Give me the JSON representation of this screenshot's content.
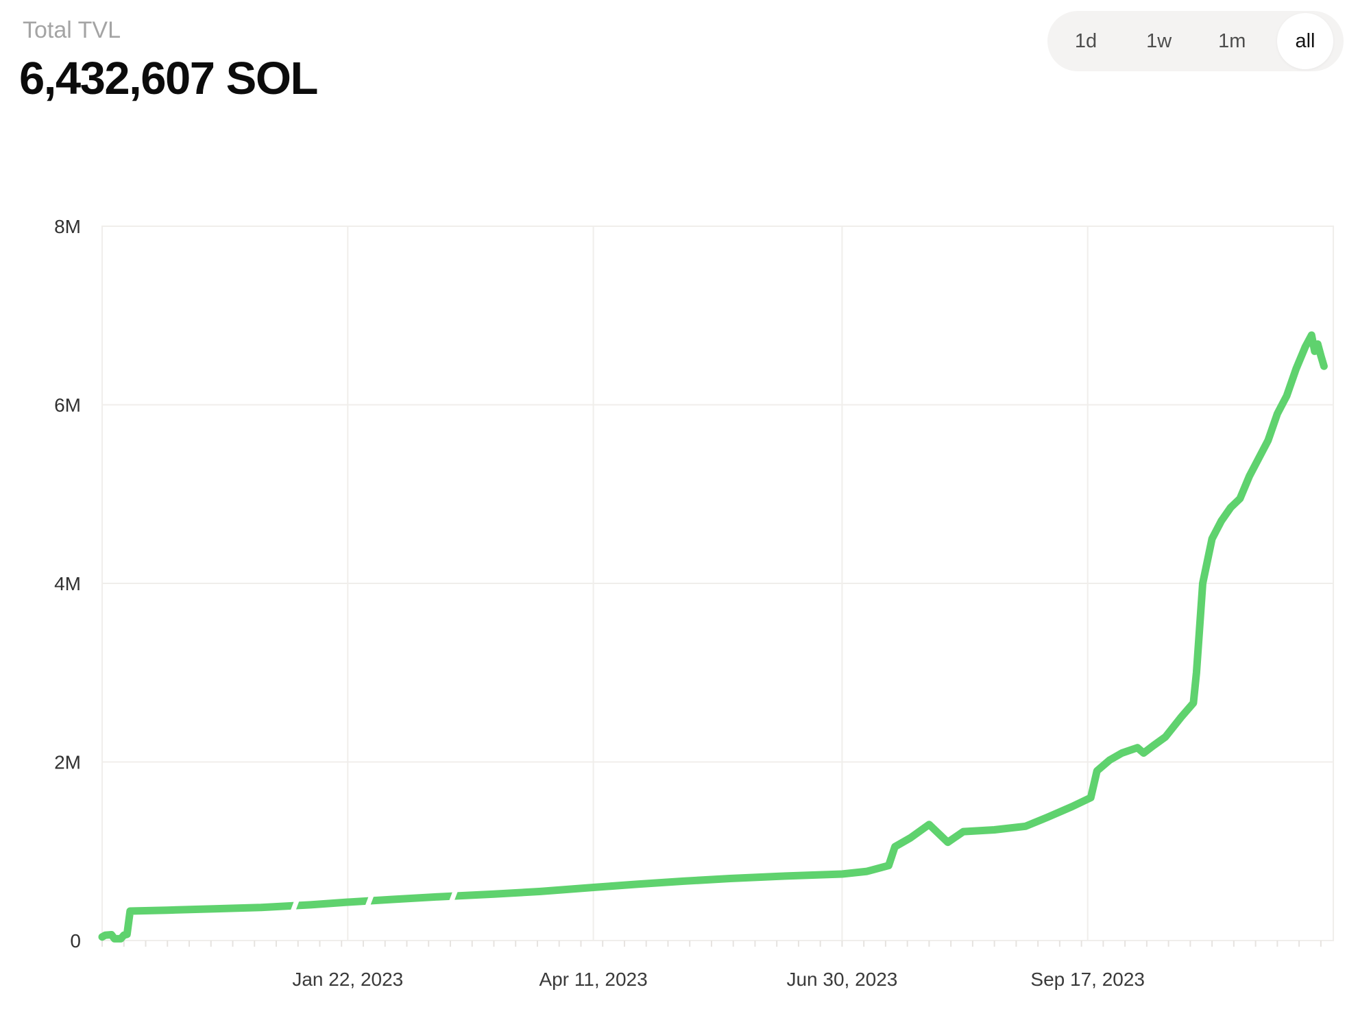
{
  "header": {
    "label": "Total TVL",
    "value": "6,432,607 SOL"
  },
  "range_selector": {
    "options": [
      {
        "label": "1d",
        "active": false
      },
      {
        "label": "1w",
        "active": false
      },
      {
        "label": "1m",
        "active": false
      },
      {
        "label": "all",
        "active": true
      }
    ]
  },
  "chart_data": {
    "type": "line",
    "title": "Total TVL",
    "unit": "SOL",
    "line_color": "#5fd26e",
    "grid_color": "#f0eeeb",
    "minor_tick_color": "#e6e3e0",
    "axis_label_color": "#3a3a3a",
    "legend": "none",
    "grid": true,
    "ylim": [
      0,
      8000000
    ],
    "x_domain": [
      "2022-11-04",
      "2023-12-05"
    ],
    "y_ticks": [
      {
        "value": 0,
        "label": "0"
      },
      {
        "value": 2000000,
        "label": "2M"
      },
      {
        "value": 4000000,
        "label": "4M"
      },
      {
        "value": 6000000,
        "label": "6M"
      },
      {
        "value": 8000000,
        "label": "8M"
      }
    ],
    "x_ticks": [
      {
        "date": "2023-01-22",
        "label": "Jan 22, 2023"
      },
      {
        "date": "2023-04-11",
        "label": "Apr 11, 2023"
      },
      {
        "date": "2023-06-30",
        "label": "Jun 30, 2023"
      },
      {
        "date": "2023-09-17",
        "label": "Sep 17, 2023"
      }
    ],
    "gap_dates": [
      "2023-01-05",
      "2023-01-29",
      "2023-02-25"
    ],
    "series": [
      {
        "name": "Total TVL (SOL)",
        "points": [
          [
            "2022-11-04",
            40000
          ],
          [
            "2022-11-05",
            60000
          ],
          [
            "2022-11-07",
            65000
          ],
          [
            "2022-11-08",
            20000
          ],
          [
            "2022-11-10",
            20000
          ],
          [
            "2022-11-11",
            60000
          ],
          [
            "2022-11-12",
            70000
          ],
          [
            "2022-11-13",
            330000
          ],
          [
            "2022-11-25",
            340000
          ],
          [
            "2022-12-10",
            355000
          ],
          [
            "2022-12-25",
            370000
          ],
          [
            "2023-01-10",
            400000
          ],
          [
            "2023-01-22",
            430000
          ],
          [
            "2023-02-05",
            460000
          ],
          [
            "2023-02-20",
            490000
          ],
          [
            "2023-03-10",
            520000
          ],
          [
            "2023-03-25",
            550000
          ],
          [
            "2023-04-11",
            595000
          ],
          [
            "2023-04-25",
            630000
          ],
          [
            "2023-05-10",
            665000
          ],
          [
            "2023-05-25",
            695000
          ],
          [
            "2023-06-10",
            720000
          ],
          [
            "2023-06-30",
            745000
          ],
          [
            "2023-07-08",
            775000
          ],
          [
            "2023-07-15",
            840000
          ],
          [
            "2023-07-17",
            1050000
          ],
          [
            "2023-07-22",
            1150000
          ],
          [
            "2023-07-28",
            1300000
          ],
          [
            "2023-08-03",
            1100000
          ],
          [
            "2023-08-08",
            1220000
          ],
          [
            "2023-08-18",
            1240000
          ],
          [
            "2023-08-28",
            1280000
          ],
          [
            "2023-09-04",
            1380000
          ],
          [
            "2023-09-12",
            1500000
          ],
          [
            "2023-09-18",
            1600000
          ],
          [
            "2023-09-20",
            1900000
          ],
          [
            "2023-09-24",
            2020000
          ],
          [
            "2023-09-28",
            2100000
          ],
          [
            "2023-10-03",
            2160000
          ],
          [
            "2023-10-05",
            2100000
          ],
          [
            "2023-10-08",
            2180000
          ],
          [
            "2023-10-12",
            2280000
          ],
          [
            "2023-10-17",
            2500000
          ],
          [
            "2023-10-21",
            2660000
          ],
          [
            "2023-10-22",
            3000000
          ],
          [
            "2023-10-24",
            4000000
          ],
          [
            "2023-10-27",
            4500000
          ],
          [
            "2023-10-30",
            4700000
          ],
          [
            "2023-11-02",
            4850000
          ],
          [
            "2023-11-05",
            4950000
          ],
          [
            "2023-11-08",
            5200000
          ],
          [
            "2023-11-11",
            5400000
          ],
          [
            "2023-11-14",
            5600000
          ],
          [
            "2023-11-17",
            5900000
          ],
          [
            "2023-11-20",
            6100000
          ],
          [
            "2023-11-23",
            6400000
          ],
          [
            "2023-11-26",
            6650000
          ],
          [
            "2023-11-28",
            6780000
          ],
          [
            "2023-11-29",
            6600000
          ],
          [
            "2023-11-30",
            6680000
          ],
          [
            "2023-12-01",
            6550000
          ],
          [
            "2023-12-02",
            6432607
          ]
        ]
      }
    ]
  }
}
